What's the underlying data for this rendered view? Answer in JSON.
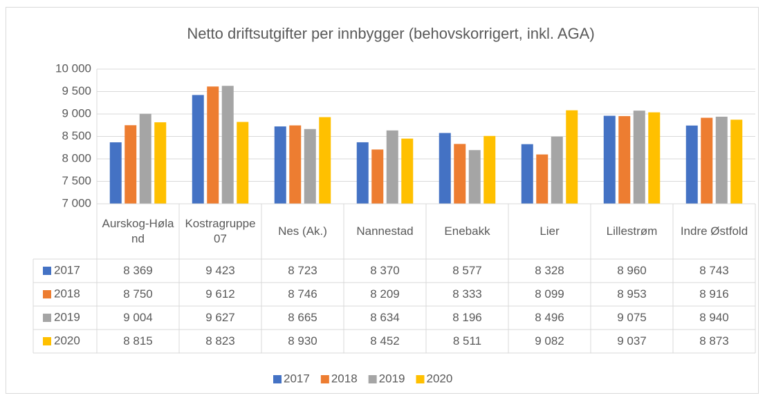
{
  "chart_data": {
    "type": "bar",
    "title": "Netto driftsutgifter per innbygger (behovskorrigert, inkl. AGA)",
    "categories": [
      "Aurskog-Høland",
      "Kostragruppe 07",
      "Nes (Ak.)",
      "Nannestad",
      "Enebakk",
      "Lier",
      "Lillestrøm",
      "Indre Østfold"
    ],
    "series": [
      {
        "name": "2017",
        "color": "#4472c4",
        "values": [
          8369,
          9423,
          8723,
          8370,
          8577,
          8328,
          8960,
          8743
        ],
        "value_labels": [
          "8 369",
          "9 423",
          "8 723",
          "8 370",
          "8 577",
          "8 328",
          "8 960",
          "8 743"
        ]
      },
      {
        "name": "2018",
        "color": "#ed7d31",
        "values": [
          8750,
          9612,
          8746,
          8209,
          8333,
          8099,
          8953,
          8916
        ],
        "value_labels": [
          "8 750",
          "9 612",
          "8 746",
          "8 209",
          "8 333",
          "8 099",
          "8 953",
          "8 916"
        ]
      },
      {
        "name": "2019",
        "color": "#a5a5a5",
        "values": [
          9004,
          9627,
          8665,
          8634,
          8196,
          8496,
          9075,
          8940
        ],
        "value_labels": [
          "9 004",
          "9 627",
          "8 665",
          "8 634",
          "8 196",
          "8 496",
          "9 075",
          "8 940"
        ]
      },
      {
        "name": "2020",
        "color": "#ffc000",
        "values": [
          8815,
          8823,
          8930,
          8452,
          8511,
          9082,
          9037,
          8873
        ],
        "value_labels": [
          "8 815",
          "8 823",
          "8 930",
          "8 452",
          "8 511",
          "9 082",
          "9 037",
          "8 873"
        ]
      }
    ],
    "ylim": [
      7000,
      10000
    ],
    "yticks": [
      {
        "value": 7000,
        "label": "7 000"
      },
      {
        "value": 7500,
        "label": "7 500"
      },
      {
        "value": 8000,
        "label": "8 000"
      },
      {
        "value": 8500,
        "label": "8 500"
      },
      {
        "value": 9000,
        "label": "9 000"
      },
      {
        "value": 9500,
        "label": "9 500"
      },
      {
        "value": 10000,
        "label": "10 000"
      }
    ],
    "grid": true,
    "legend": "bottom"
  }
}
